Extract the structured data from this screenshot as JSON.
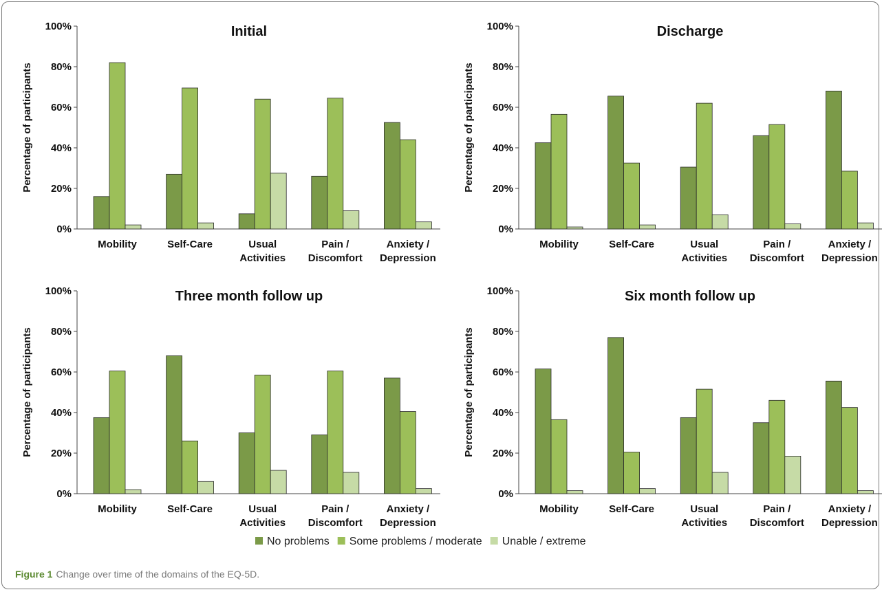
{
  "chart_data": [
    {
      "type": "bar",
      "title": "Initial",
      "ylabel": "Percentage of participants",
      "ylim": [
        0,
        100
      ],
      "yticks": [
        "0%",
        "20%",
        "40%",
        "60%",
        "80%",
        "100%"
      ],
      "categories": [
        [
          "Mobility"
        ],
        [
          "Self-Care"
        ],
        [
          "Usual",
          "Activities"
        ],
        [
          "Pain /",
          "Discomfort"
        ],
        [
          "Anxiety /",
          "Depression"
        ]
      ],
      "series": [
        {
          "name": "No problems",
          "values": [
            16,
            27,
            7.5,
            26,
            52.5
          ]
        },
        {
          "name": "Some problems / moderate",
          "values": [
            82,
            69.5,
            64,
            64.5,
            44
          ]
        },
        {
          "name": "Unable / extreme",
          "values": [
            2,
            3,
            27.5,
            9,
            3.5
          ]
        }
      ]
    },
    {
      "type": "bar",
      "title": "Discharge",
      "ylabel": "Percentage of participants",
      "ylim": [
        0,
        100
      ],
      "yticks": [
        "0%",
        "20%",
        "40%",
        "60%",
        "80%",
        "100%"
      ],
      "categories": [
        [
          "Mobility"
        ],
        [
          "Self-Care"
        ],
        [
          "Usual",
          "Activities"
        ],
        [
          "Pain /",
          "Discomfort"
        ],
        [
          "Anxiety /",
          "Depression"
        ]
      ],
      "series": [
        {
          "name": "No problems",
          "values": [
            42.5,
            65.5,
            30.5,
            46,
            68
          ]
        },
        {
          "name": "Some problems / moderate",
          "values": [
            56.5,
            32.5,
            62,
            51.5,
            28.5
          ]
        },
        {
          "name": "Unable / extreme",
          "values": [
            1,
            2,
            7,
            2.5,
            3
          ]
        }
      ]
    },
    {
      "type": "bar",
      "title": "Three month follow up",
      "ylabel": "Percentage of participants",
      "ylim": [
        0,
        100
      ],
      "yticks": [
        "0%",
        "20%",
        "40%",
        "60%",
        "80%",
        "100%"
      ],
      "categories": [
        [
          "Mobility"
        ],
        [
          "Self-Care"
        ],
        [
          "Usual",
          "Activities"
        ],
        [
          "Pain /",
          "Discomfort"
        ],
        [
          "Anxiety /",
          "Depression"
        ]
      ],
      "series": [
        {
          "name": "No problems",
          "values": [
            37.5,
            68,
            30,
            29,
            57
          ]
        },
        {
          "name": "Some problems / moderate",
          "values": [
            60.5,
            26,
            58.5,
            60.5,
            40.5
          ]
        },
        {
          "name": "Unable / extreme",
          "values": [
            2,
            6,
            11.5,
            10.5,
            2.5
          ]
        }
      ]
    },
    {
      "type": "bar",
      "title": "Six month follow up",
      "ylabel": "Percentage of participants",
      "ylim": [
        0,
        100
      ],
      "yticks": [
        "0%",
        "20%",
        "40%",
        "60%",
        "80%",
        "100%"
      ],
      "categories": [
        [
          "Mobility"
        ],
        [
          "Self-Care"
        ],
        [
          "Usual",
          "Activities"
        ],
        [
          "Pain /",
          "Discomfort"
        ],
        [
          "Anxiety /",
          "Depression"
        ]
      ],
      "series": [
        {
          "name": "No problems",
          "values": [
            61.5,
            77,
            37.5,
            35,
            55.5
          ]
        },
        {
          "name": "Some problems / moderate",
          "values": [
            36.5,
            20.5,
            51.5,
            46,
            42.5
          ]
        },
        {
          "name": "Unable / extreme",
          "values": [
            1.5,
            2.5,
            10.5,
            18.5,
            1.5
          ]
        }
      ]
    }
  ],
  "legend": {
    "items": [
      {
        "label": "No problems",
        "color": "#7b9a48"
      },
      {
        "label": "Some problems / moderate",
        "color": "#9cbf59"
      },
      {
        "label": "Unable / extreme",
        "color": "#c6dba6"
      }
    ]
  },
  "colors": {
    "series": [
      "#7b9a48",
      "#9cbf59",
      "#c6dba6"
    ],
    "stroke": "#2b2b2b"
  },
  "caption": {
    "label": "Figure 1",
    "text": "Change over time of the domains of the EQ-5D."
  }
}
